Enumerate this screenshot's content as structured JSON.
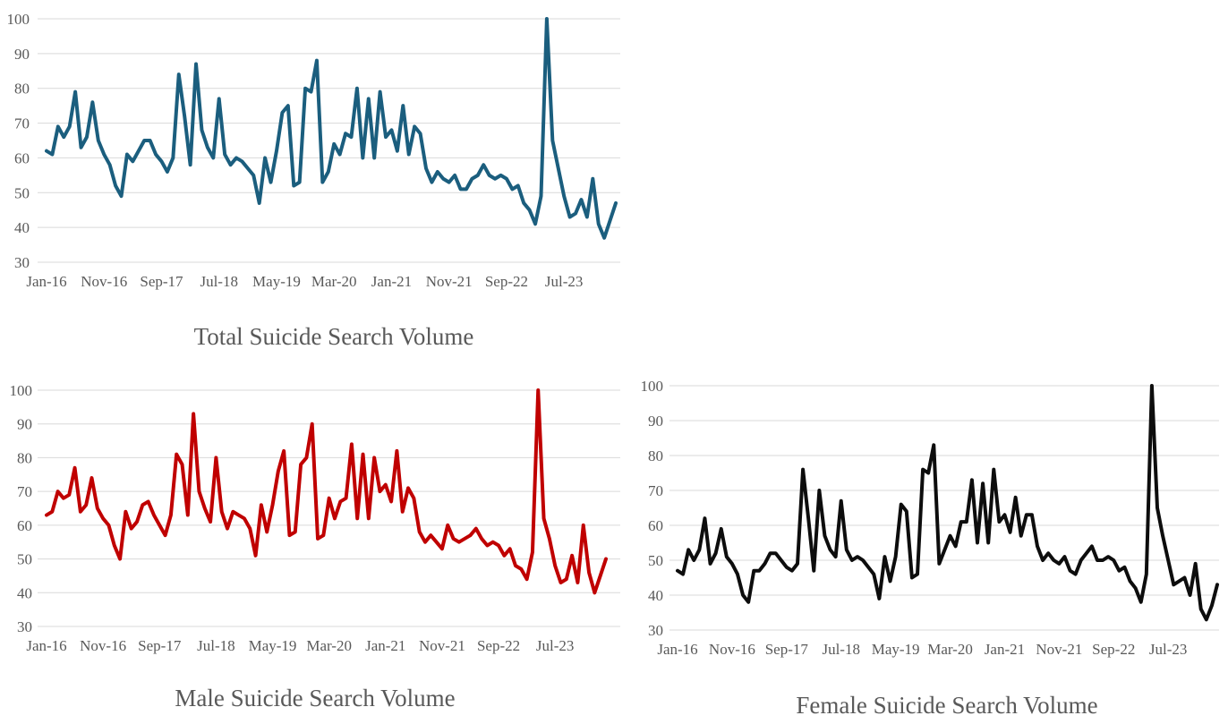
{
  "chart_data": [
    {
      "type": "line",
      "title": "Total Suicide Search Volume",
      "color": "#1b5e7e",
      "x_tick_labels": [
        "Jan-16",
        "Nov-16",
        "Sep-17",
        "Jul-18",
        "May-19",
        "Mar-20",
        "Jan-21",
        "Nov-21",
        "Sep-22",
        "Jul-23"
      ],
      "ylim": [
        30,
        100
      ],
      "y_ticks": [
        30,
        40,
        50,
        60,
        70,
        80,
        90,
        100
      ],
      "grid": true,
      "x_start": "Jan-16",
      "x_end": "Apr-24",
      "x_step": "month",
      "values": [
        62,
        61,
        69,
        66,
        69,
        79,
        63,
        66,
        76,
        65,
        61,
        58,
        52,
        49,
        61,
        59,
        62,
        65,
        65,
        61,
        59,
        56,
        60,
        84,
        72,
        58,
        87,
        68,
        63,
        60,
        77,
        61,
        58,
        60,
        59,
        57,
        55,
        47,
        60,
        53,
        62,
        73,
        75,
        52,
        53,
        80,
        79,
        88,
        53,
        56,
        64,
        61,
        67,
        66,
        80,
        60,
        77,
        60,
        79,
        66,
        68,
        62,
        75,
        61,
        69,
        67,
        57,
        53,
        56,
        54,
        53,
        55,
        51,
        51,
        54,
        55,
        58,
        55,
        54,
        55,
        54,
        51,
        52,
        47,
        45,
        41,
        49,
        100,
        65,
        57,
        49,
        43,
        44,
        48,
        43,
        54,
        41,
        37,
        42,
        47
      ]
    },
    {
      "type": "line",
      "title": "Male Suicide Search Volume",
      "color": "#c00000",
      "x_tick_labels": [
        "Jan-16",
        "Nov-16",
        "Sep-17",
        "Jul-18",
        "May-19",
        "Mar-20",
        "Jan-21",
        "Nov-21",
        "Sep-22",
        "Jul-23"
      ],
      "ylim": [
        30,
        100
      ],
      "y_ticks": [
        30,
        40,
        50,
        60,
        70,
        80,
        90,
        100
      ],
      "grid": true,
      "x_start": "Jan-16",
      "x_end": "Apr-24",
      "x_step": "month",
      "values": [
        63,
        64,
        70,
        68,
        69,
        77,
        64,
        66,
        74,
        65,
        62,
        60,
        54,
        50,
        64,
        59,
        61,
        66,
        67,
        63,
        60,
        57,
        63,
        81,
        78,
        63,
        93,
        70,
        65,
        61,
        80,
        64,
        59,
        64,
        63,
        62,
        59,
        51,
        66,
        58,
        66,
        76,
        82,
        57,
        58,
        78,
        80,
        90,
        56,
        57,
        68,
        62,
        67,
        68,
        84,
        62,
        81,
        62,
        80,
        70,
        72,
        67,
        82,
        64,
        71,
        68,
        58,
        55,
        57,
        55,
        53,
        60,
        56,
        55,
        56,
        57,
        59,
        56,
        54,
        55,
        54,
        51,
        53,
        48,
        47,
        44,
        52,
        100,
        62,
        56,
        48,
        43,
        44,
        51,
        43,
        60,
        46,
        40,
        45,
        50
      ]
    },
    {
      "type": "line",
      "title": "Female Suicide Search Volume",
      "color": "#0d0d0d",
      "x_tick_labels": [
        "Jan-16",
        "Nov-16",
        "Sep-17",
        "Jul-18",
        "May-19",
        "Mar-20",
        "Jan-21",
        "Nov-21",
        "Sep-22",
        "Jul-23"
      ],
      "ylim": [
        30,
        100
      ],
      "y_ticks": [
        30,
        40,
        50,
        60,
        70,
        80,
        90,
        100
      ],
      "grid": true,
      "x_start": "Jan-16",
      "x_end": "Apr-24",
      "x_step": "month",
      "values": [
        47,
        46,
        53,
        50,
        53,
        62,
        49,
        52,
        59,
        51,
        49,
        46,
        40,
        38,
        47,
        47,
        49,
        52,
        52,
        50,
        48,
        47,
        49,
        76,
        62,
        47,
        70,
        57,
        53,
        51,
        67,
        53,
        50,
        51,
        50,
        48,
        46,
        39,
        51,
        44,
        51,
        66,
        64,
        45,
        46,
        76,
        75,
        83,
        49,
        53,
        57,
        54,
        61,
        61,
        73,
        55,
        72,
        55,
        76,
        61,
        63,
        58,
        68,
        57,
        63,
        63,
        54,
        50,
        52,
        50,
        49,
        51,
        47,
        46,
        50,
        52,
        54,
        50,
        50,
        51,
        50,
        47,
        48,
        44,
        42,
        38,
        46,
        100,
        65,
        57,
        50,
        43,
        44,
        45,
        40,
        49,
        36,
        33,
        37,
        43
      ]
    }
  ]
}
